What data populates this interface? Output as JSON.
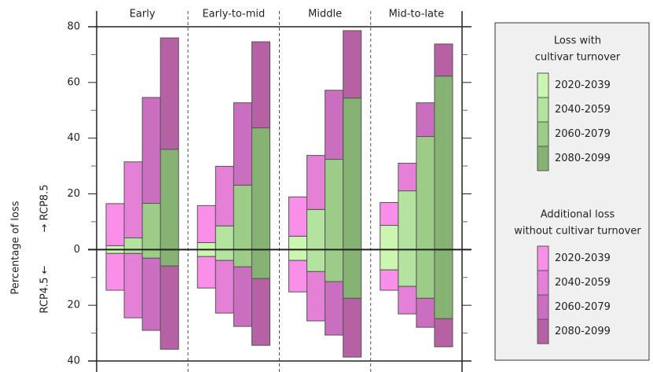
{
  "chart_data": {
    "type": "diverging-stacked-bar",
    "y_label": "Percentage of loss",
    "up_label": "→ RCP8.5",
    "down_label": "RCP4.5 ←",
    "categories": [
      "Early",
      "Early-to-mid",
      "Middle",
      "Mid-to-late"
    ],
    "ylim": [
      -40,
      80
    ],
    "yticks": [
      {
        "value": -40,
        "label": "40"
      },
      {
        "value": -20,
        "label": "20"
      },
      0,
      20,
      40,
      60,
      80
    ],
    "minor_yticks": [
      -30,
      -10,
      10,
      30,
      50,
      70
    ],
    "series_groups": [
      {
        "title": [
          "Loss with",
          "cultivar turnover"
        ],
        "series": [
          {
            "name": "2020-2039",
            "color": "#ccf5b2",
            "rcp85": [
              1.4,
              2.5,
              4.8,
              8.7
            ],
            "rcp45": [
              -1.4,
              -2.5,
              -3.9,
              -7.3
            ]
          },
          {
            "name": "2040-2059",
            "color": "#b3e39e",
            "rcp85": [
              4.2,
              8.5,
              14.4,
              21.1
            ],
            "rcp45": [
              -1.4,
              -3.9,
              -7.9,
              -13.2
            ]
          },
          {
            "name": "2060-2079",
            "color": "#9dcc89",
            "rcp85": [
              16.6,
              23.1,
              32.4,
              40.6
            ],
            "rcp45": [
              -3.1,
              -6.2,
              -11.5,
              -17.5
            ]
          },
          {
            "name": "2080-2099",
            "color": "#86b273",
            "rcp85": [
              36.0,
              43.7,
              54.4,
              62.3
            ],
            "rcp45": [
              -5.9,
              -10.4,
              -17.5,
              -24.8
            ]
          }
        ]
      },
      {
        "title": [
          "Additional loss",
          "without cultivar turnover"
        ],
        "series": [
          {
            "name": "2020-2039",
            "color": "#f98fe8",
            "rcp85": [
              15.1,
              13.3,
              14.1,
              8.2
            ],
            "rcp45": [
              -13.2,
              -11.3,
              -11.3,
              -7.3
            ]
          },
          {
            "name": "2040-2059",
            "color": "#e480d6",
            "rcp85": [
              27.3,
              21.4,
              19.4,
              9.9
            ],
            "rcp45": [
              -23.1,
              -18.9,
              -17.7,
              -9.9
            ]
          },
          {
            "name": "2060-2079",
            "color": "#ca6fc0",
            "rcp85": [
              38.0,
              29.6,
              24.8,
              12.1
            ],
            "rcp45": [
              -25.9,
              -21.4,
              -19.2,
              -10.4
            ]
          },
          {
            "name": "2080-2099",
            "color": "#b561a3",
            "rcp85": [
              40.0,
              30.9,
              24.2,
              11.5
            ],
            "rcp45": [
              -29.9,
              -24.0,
              -21.1,
              -10.1
            ]
          }
        ]
      }
    ]
  }
}
